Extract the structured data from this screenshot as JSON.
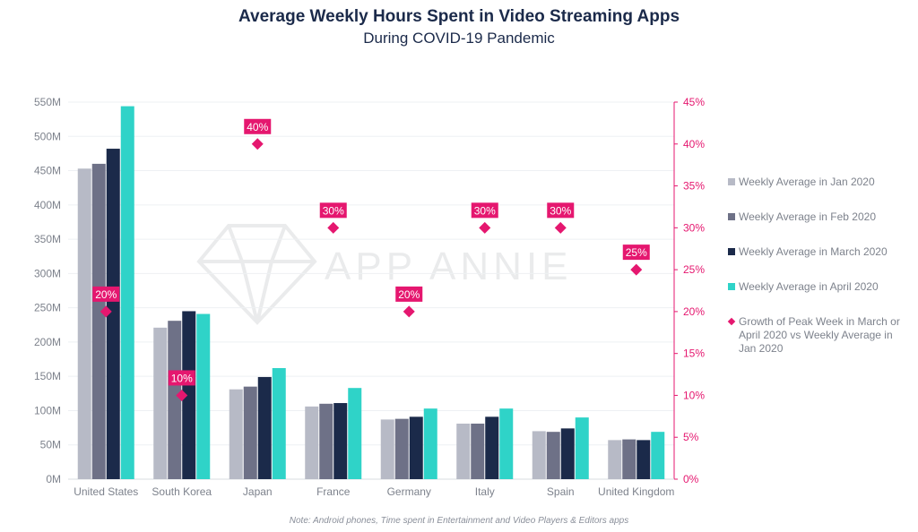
{
  "chart_data": {
    "type": "bar",
    "title": "Average Weekly Hours Spent in Video Streaming Apps",
    "subtitle": "During COVID-19 Pandemic",
    "note": "Note: Android phones, Time spent in Entertainment and Video Players & Editors apps",
    "watermark": "APP ANNIE",
    "categories": [
      "United States",
      "South Korea",
      "Japan",
      "France",
      "Germany",
      "Italy",
      "Spain",
      "United Kingdom"
    ],
    "series": [
      {
        "name": "Weekly Average in Jan 2020",
        "color": "#b7bac6",
        "values": [
          453,
          221,
          131,
          106,
          87,
          81,
          70,
          57
        ]
      },
      {
        "name": "Weekly Average in Feb 2020",
        "color": "#6e7187",
        "values": [
          460,
          231,
          135,
          110,
          88,
          81,
          69,
          58
        ]
      },
      {
        "name": "Weekly Average in March 2020",
        "color": "#1b2a4a",
        "values": [
          482,
          245,
          149,
          111,
          91,
          91,
          74,
          57
        ]
      },
      {
        "name": "Weekly Average in April 2020",
        "color": "#2fd3c8",
        "values": [
          544,
          241,
          162,
          133,
          103,
          103,
          90,
          69
        ]
      }
    ],
    "growth": {
      "name": "Growth of Peak Week in March or April 2020 vs Weekly Average in Jan 2020",
      "color": "#e5176f",
      "values": [
        20,
        10,
        40,
        30,
        20,
        30,
        30,
        25
      ],
      "labels": [
        "20%",
        "10%",
        "40%",
        "30%",
        "20%",
        "30%",
        "30%",
        "25%"
      ]
    },
    "y_left": {
      "min": 0,
      "max": 550,
      "step": 50,
      "ticks": [
        "0M",
        "50M",
        "100M",
        "150M",
        "200M",
        "250M",
        "300M",
        "350M",
        "400M",
        "450M",
        "500M",
        "550M"
      ]
    },
    "y_right": {
      "min": 0,
      "max": 45,
      "step": 5,
      "ticks": [
        "0%",
        "5%",
        "10%",
        "15%",
        "20%",
        "25%",
        "30%",
        "35%",
        "40%",
        "45%"
      ]
    },
    "grid": true,
    "legend_position": "right"
  }
}
